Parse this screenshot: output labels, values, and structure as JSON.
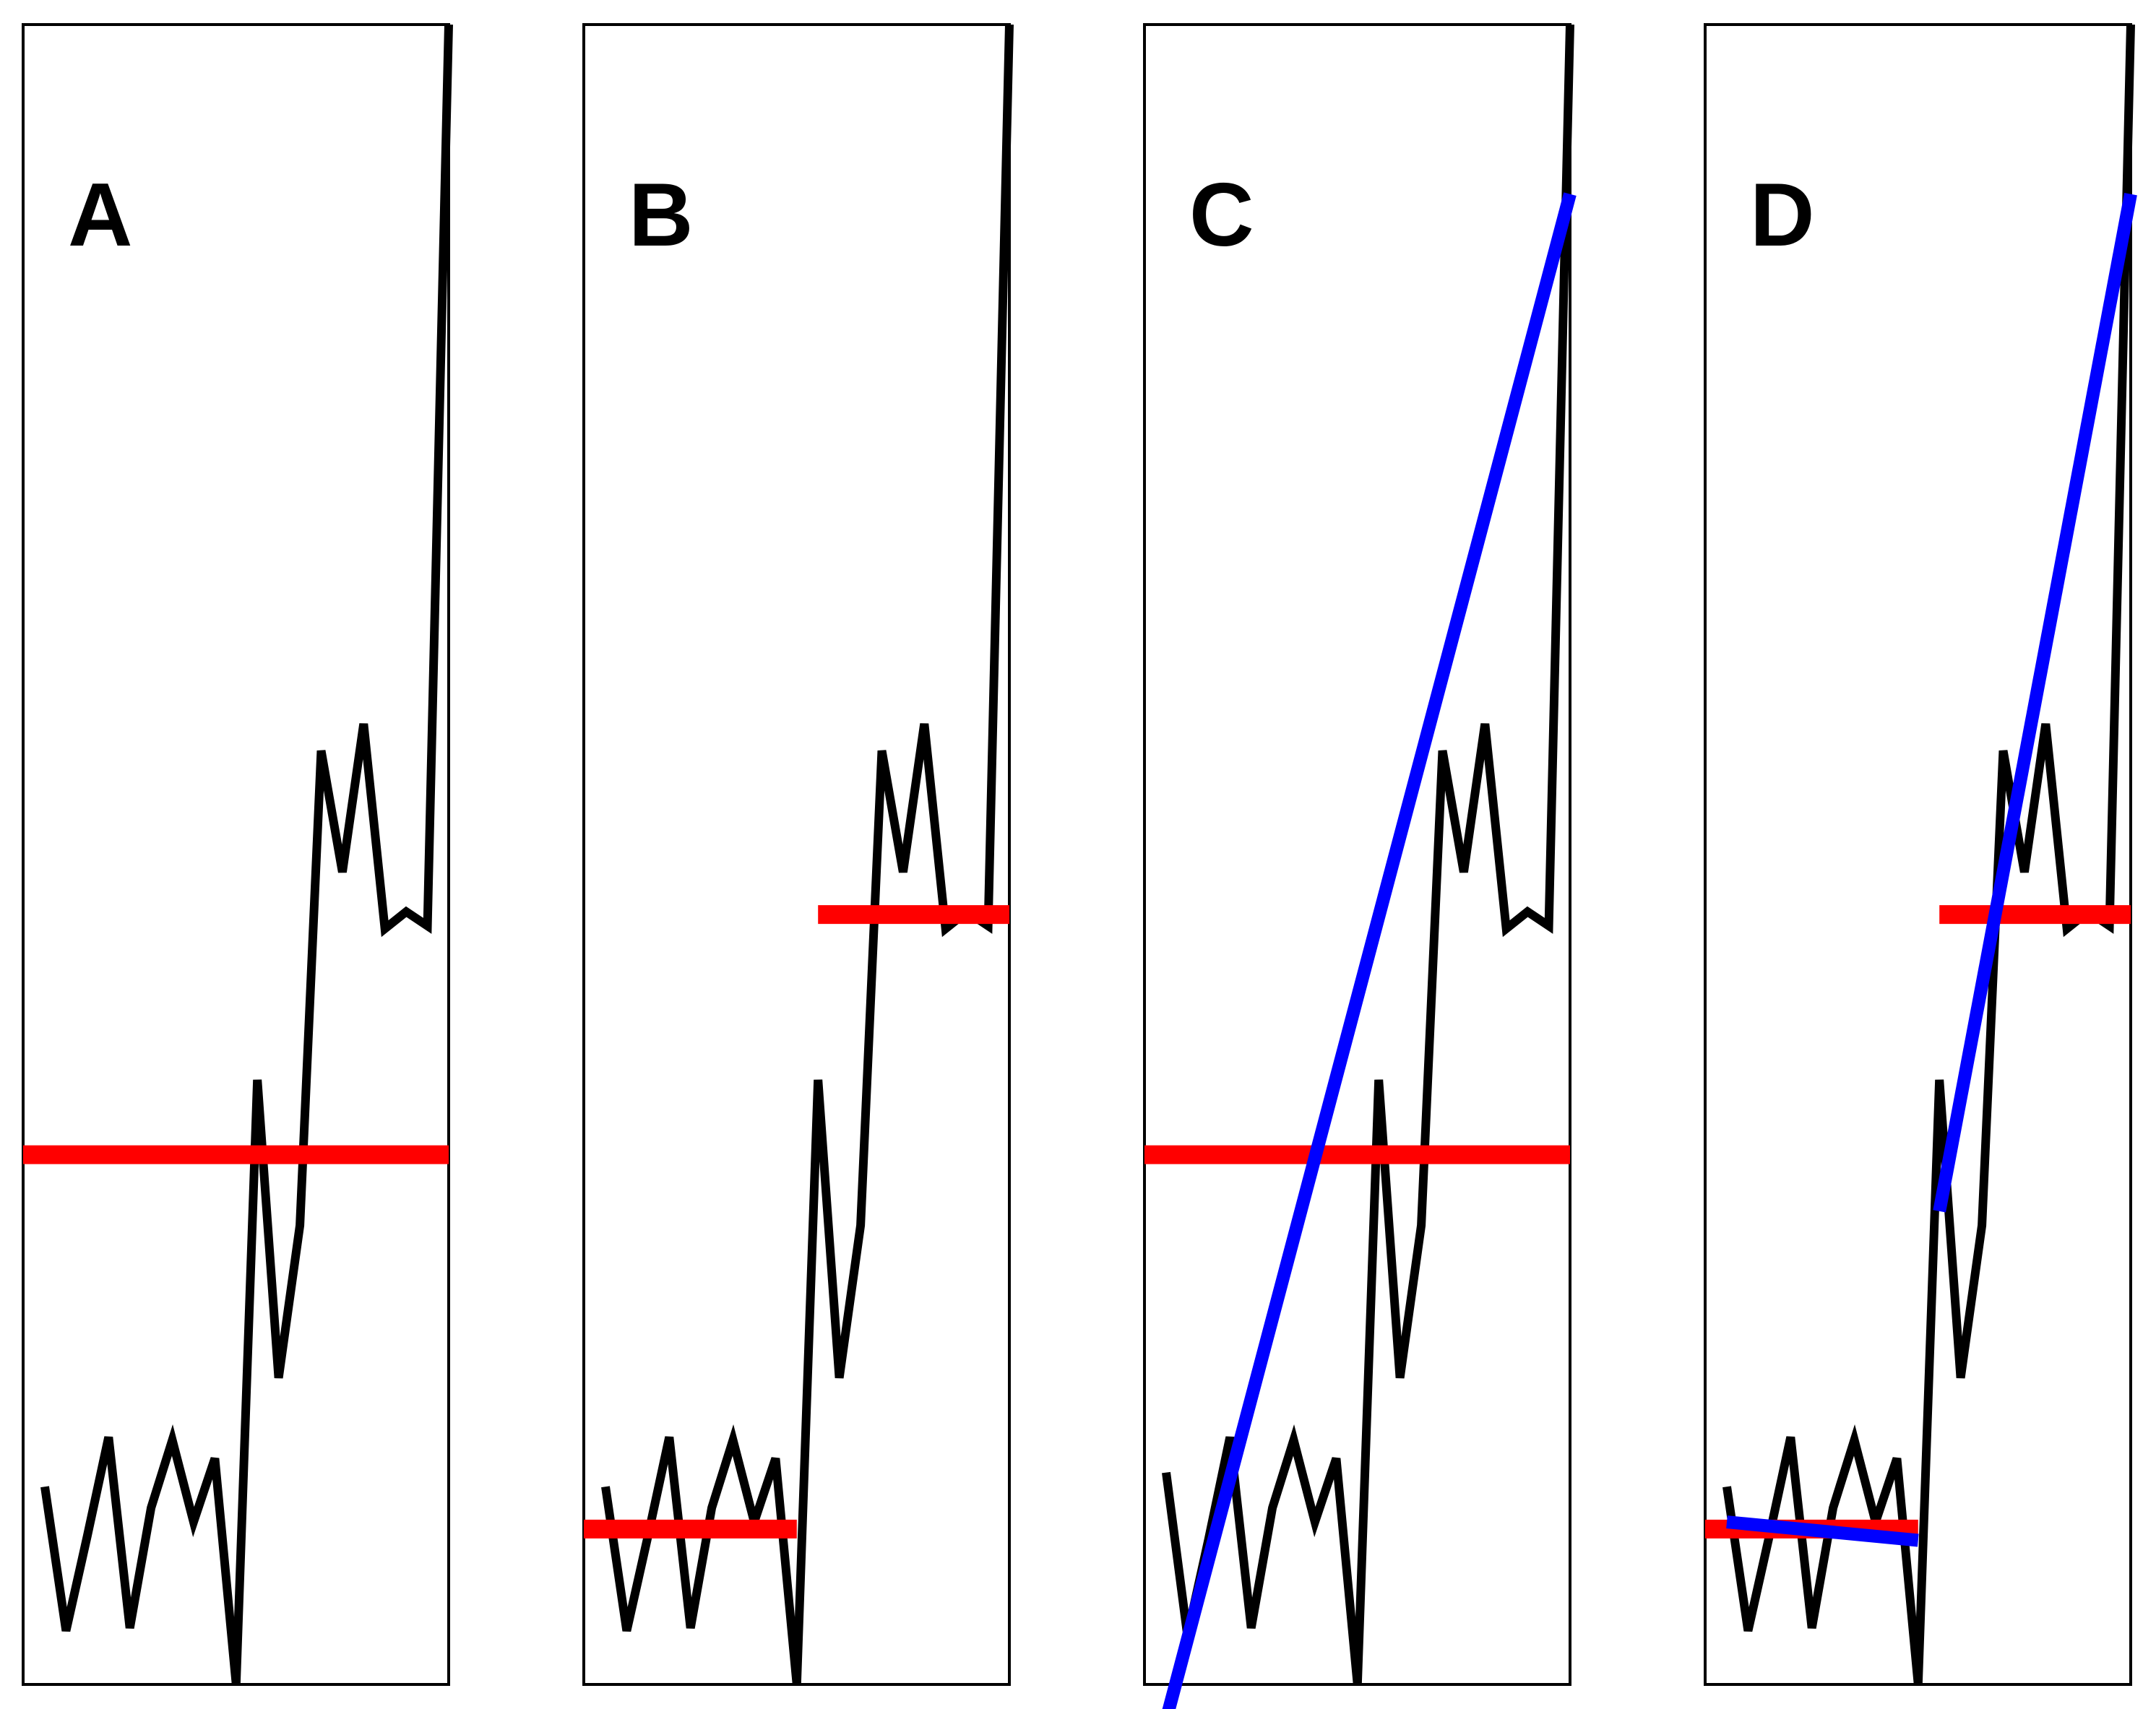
{
  "chart_data": [
    {
      "type": "line",
      "panel_label": "A",
      "x": [
        1,
        2,
        3,
        4,
        5,
        6,
        7,
        8,
        9,
        10,
        11,
        12,
        13,
        14,
        15,
        16,
        17,
        18,
        19,
        20
      ],
      "series": [
        {
          "values": [
            -0.35,
            -1.37,
            -0.7,
            0.0,
            -1.35,
            -0.5,
            -0.02,
            -0.6,
            -0.15,
            -1.75,
            2.53,
            0.42,
            1.5,
            4.86,
            4.0,
            5.05,
            3.6,
            3.72,
            3.62,
            10.0
          ]
        }
      ],
      "mean_lines": [
        {
          "x_start": 1,
          "x_end": 20,
          "y": 2.0
        }
      ],
      "trend_lines": [],
      "ylim": [
        -1.75,
        10.0
      ]
    },
    {
      "type": "line",
      "panel_label": "B",
      "x": [
        1,
        2,
        3,
        4,
        5,
        6,
        7,
        8,
        9,
        10,
        11,
        12,
        13,
        14,
        15,
        16,
        17,
        18,
        19,
        20
      ],
      "series": [
        {
          "values": [
            -0.35,
            -1.37,
            -0.7,
            0.0,
            -1.35,
            -0.5,
            -0.02,
            -0.6,
            -0.15,
            -1.75,
            2.53,
            0.42,
            1.5,
            4.86,
            4.0,
            5.05,
            3.6,
            3.72,
            3.62,
            10.0
          ]
        }
      ],
      "mean_lines": [
        {
          "x_start": 1,
          "x_end": 10,
          "y": -0.65
        },
        {
          "x_start": 11,
          "x_end": 20,
          "y": 3.7
        }
      ],
      "trend_lines": [],
      "ylim": [
        -1.75,
        10.0
      ]
    },
    {
      "type": "line",
      "panel_label": "C",
      "x": [
        1,
        2,
        3,
        4,
        5,
        6,
        7,
        8,
        9,
        10,
        11,
        12,
        13,
        14,
        15,
        16,
        17,
        18,
        19,
        20
      ],
      "series": [
        {
          "values": [
            -0.25,
            -1.4,
            -0.72,
            0.0,
            -1.35,
            -0.5,
            -0.02,
            -0.6,
            -0.15,
            -1.75,
            2.53,
            0.42,
            1.5,
            4.86,
            4.0,
            5.05,
            3.6,
            3.72,
            3.62,
            10.0
          ]
        }
      ],
      "mean_lines": [
        {
          "x_start": 1,
          "x_end": 20,
          "y": 2.0
        }
      ],
      "trend_lines": [
        {
          "x_start": 1,
          "x_end": 20,
          "y_start": -2.0,
          "y_end": 8.8
        }
      ],
      "ylim": [
        -1.75,
        10.0
      ]
    },
    {
      "type": "line",
      "panel_label": "D",
      "x": [
        1,
        2,
        3,
        4,
        5,
        6,
        7,
        8,
        9,
        10,
        11,
        12,
        13,
        14,
        15,
        16,
        17,
        18,
        19,
        20
      ],
      "series": [
        {
          "values": [
            -0.35,
            -1.37,
            -0.7,
            0.0,
            -1.35,
            -0.5,
            -0.02,
            -0.6,
            -0.15,
            -1.75,
            2.53,
            0.42,
            1.5,
            4.86,
            4.0,
            5.05,
            3.6,
            3.72,
            3.62,
            10.0
          ]
        }
      ],
      "mean_lines": [
        {
          "x_start": 1,
          "x_end": 10,
          "y": -0.65
        },
        {
          "x_start": 11,
          "x_end": 20,
          "y": 3.7
        }
      ],
      "trend_lines": [
        {
          "x_start": 1,
          "x_end": 10,
          "y_start": -0.6,
          "y_end": -0.73
        },
        {
          "x_start": 11,
          "x_end": 20,
          "y_start": 1.6,
          "y_end": 8.8
        }
      ],
      "ylim": [
        -1.75,
        10.0
      ]
    }
  ],
  "colors": {
    "series": "#000000",
    "mean_line": "#ff0000",
    "trend_line": "#0000ff",
    "frame": "#000000",
    "background": "#ffffff"
  }
}
